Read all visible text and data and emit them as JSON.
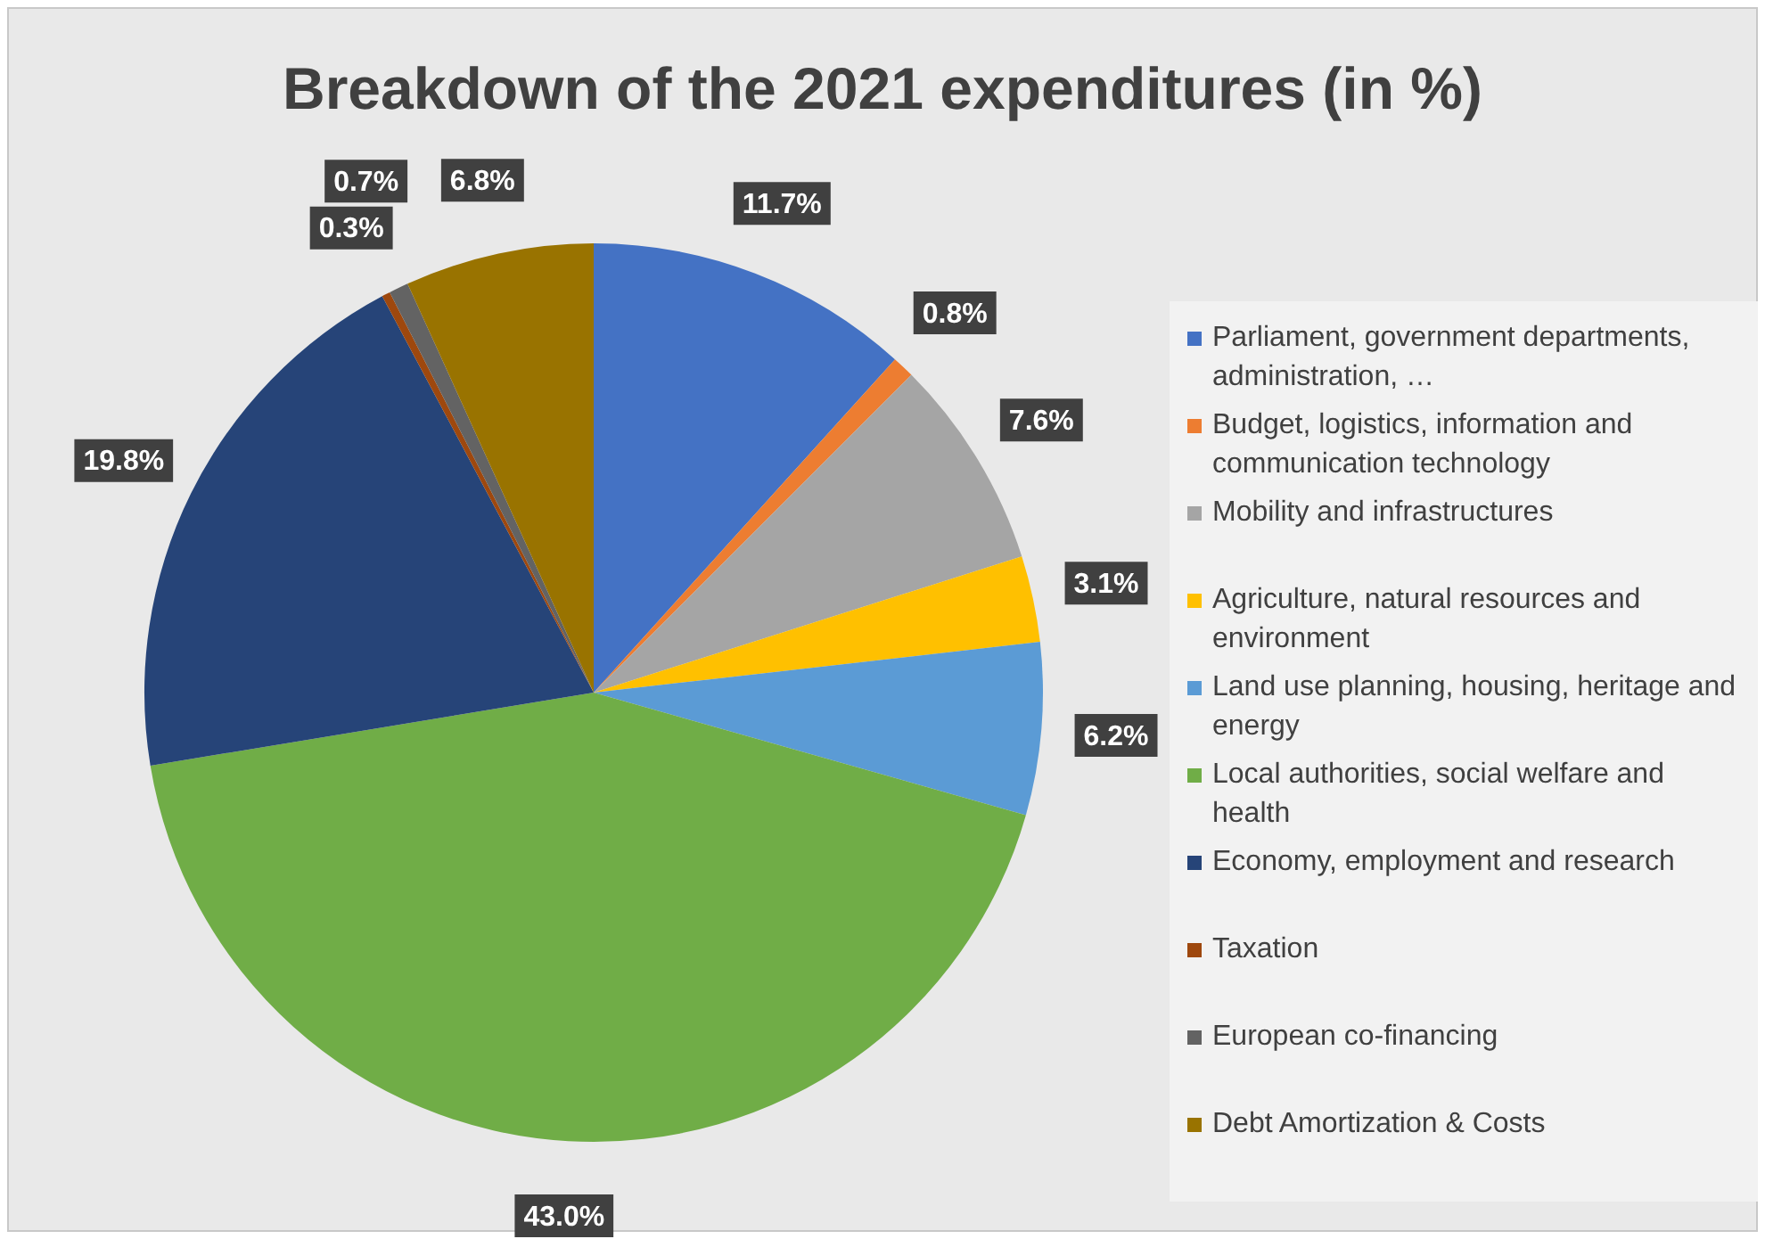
{
  "chart_data": {
    "type": "pie",
    "title": "Breakdown of the 2021 expenditures (in %)",
    "categories": [
      "Parliament, government departments, administration, …",
      "Budget, logistics, information and communication technology",
      "Mobility and infrastructures",
      "Agriculture, natural resources and environment",
      "Land use planning, housing, heritage and energy",
      "Local authorities, social welfare and health",
      "Economy, employment and research",
      "Taxation",
      "European co-financing",
      "Debt Amortization & Costs"
    ],
    "values": [
      11.7,
      0.8,
      7.6,
      3.1,
      6.2,
      43.0,
      19.8,
      0.3,
      0.7,
      6.8
    ],
    "colors": [
      "#4472c4",
      "#ed7d31",
      "#a5a5a5",
      "#ffc000",
      "#5b9bd5",
      "#70ad47",
      "#264478",
      "#9e480e",
      "#636363",
      "#997300"
    ],
    "value_labels": [
      "11.7%",
      "0.8%",
      "7.6%",
      "3.1%",
      "6.2%",
      "43.0%",
      "19.8%",
      "0.3%",
      "0.7%",
      "6.8%"
    ],
    "legend": "right"
  }
}
